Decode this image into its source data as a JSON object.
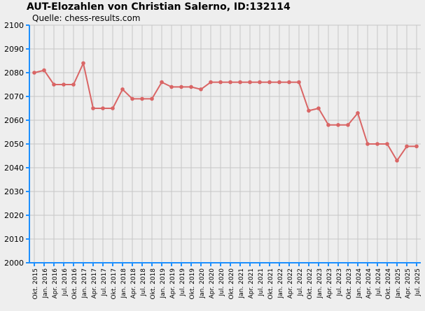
{
  "chart_data": {
    "type": "line",
    "title": "AUT-Elozahlen von Christian Salerno, ID:132114",
    "subtitle": "Quelle: chess-results.com",
    "xlabel": "",
    "ylabel": "",
    "ylim": [
      2000,
      2100
    ],
    "yticks": [
      2000,
      2010,
      2020,
      2030,
      2040,
      2050,
      2060,
      2070,
      2080,
      2090,
      2100
    ],
    "grid": true,
    "line_color": "#d96565",
    "categories": [
      "Okt. 2015",
      "Jan. 2016",
      "Apr. 2016",
      "Jul. 2016",
      "Okt. 2016",
      "Jan. 2017",
      "Apr. 2017",
      "Jul. 2017",
      "Okt. 2017",
      "Jan. 2018",
      "Apr. 2018",
      "Jul. 2018",
      "Okt. 2018",
      "Jan. 2019",
      "Apr. 2019",
      "Jul. 2019",
      "Okt. 2019",
      "Jan. 2020",
      "Apr. 2020",
      "Jul. 2020",
      "Okt. 2020",
      "Jan. 2021",
      "Apr. 2021",
      "Jul. 2021",
      "Okt. 2021",
      "Jan. 2022",
      "Apr. 2022",
      "Jul. 2022",
      "Okt. 2022",
      "Jan. 2023",
      "Apr. 2023",
      "Jul. 2023",
      "Okt. 2023",
      "Jan. 2024",
      "Apr. 2024",
      "Jul. 2024",
      "Okt. 2024",
      "Jan. 2025",
      "Apr. 2025",
      "Jul. 2025"
    ],
    "values": [
      2080,
      2081,
      2075,
      2075,
      2075,
      2084,
      2065,
      2065,
      2065,
      2073,
      2069,
      2069,
      2069,
      2076,
      2074,
      2074,
      2074,
      2073,
      2076,
      2076,
      2076,
      2076,
      2076,
      2076,
      2076,
      2076,
      2076,
      2076,
      2064,
      2065,
      2058,
      2058,
      2058,
      2063,
      2050,
      2050,
      2050,
      2043,
      2049,
      2049
    ]
  }
}
